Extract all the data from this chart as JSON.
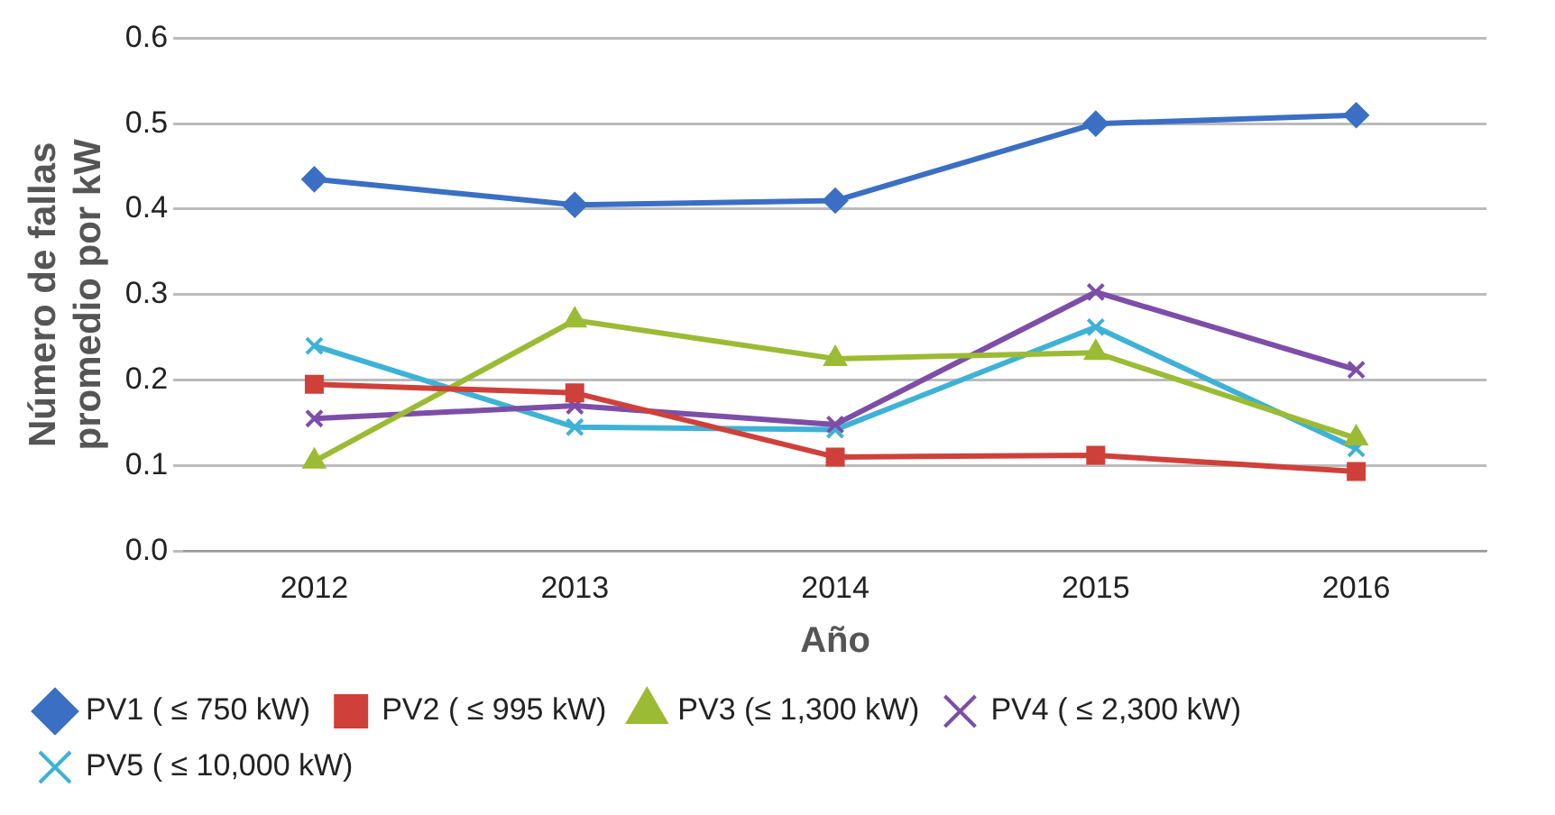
{
  "chart_data": {
    "type": "line",
    "xlabel": "Año",
    "ylabel": "Número de fallas promedio por kW",
    "categories": [
      "2012",
      "2013",
      "2014",
      "2015",
      "2016"
    ],
    "series": [
      {
        "name": "PV1 ( ≤ 750 kW)",
        "color": "#3a6fc4",
        "marker": "diamond",
        "values": [
          0.435,
          0.405,
          0.41,
          0.5,
          0.51
        ]
      },
      {
        "name": "PV2 ( ≤ 995 kW)",
        "color": "#d0403a",
        "marker": "square",
        "values": [
          0.195,
          0.185,
          0.11,
          0.112,
          0.093
        ]
      },
      {
        "name": "PV3 (≤ 1,300 kW)",
        "color": "#9bbb34",
        "marker": "triangle",
        "values": [
          0.105,
          0.27,
          0.225,
          0.232,
          0.132
        ]
      },
      {
        "name": "PV4 ( ≤ 2,300 kW)",
        "color": "#7d4ea8",
        "marker": "cross",
        "values": [
          0.155,
          0.17,
          0.148,
          0.303,
          0.212
        ]
      },
      {
        "name": "PV5 ( ≤ 10,000 kW)",
        "color": "#3eb2d6",
        "marker": "cross",
        "values": [
          0.24,
          0.145,
          0.142,
          0.262,
          0.12
        ]
      }
    ],
    "ylim": [
      0,
      0.6
    ],
    "yticks": [
      {
        "value": 0,
        "label": "0.0"
      },
      {
        "value": 0.1,
        "label": "0.1"
      },
      {
        "value": 0.2,
        "label": "0.2"
      },
      {
        "value": 0.3,
        "label": "0.3"
      },
      {
        "value": 0.4,
        "label": "0.4"
      },
      {
        "value": 0.5,
        "label": "0.5"
      },
      {
        "value": 0.6,
        "label": "0.6"
      }
    ],
    "grid": "y",
    "legend": "bottom",
    "line_style": "solid"
  }
}
